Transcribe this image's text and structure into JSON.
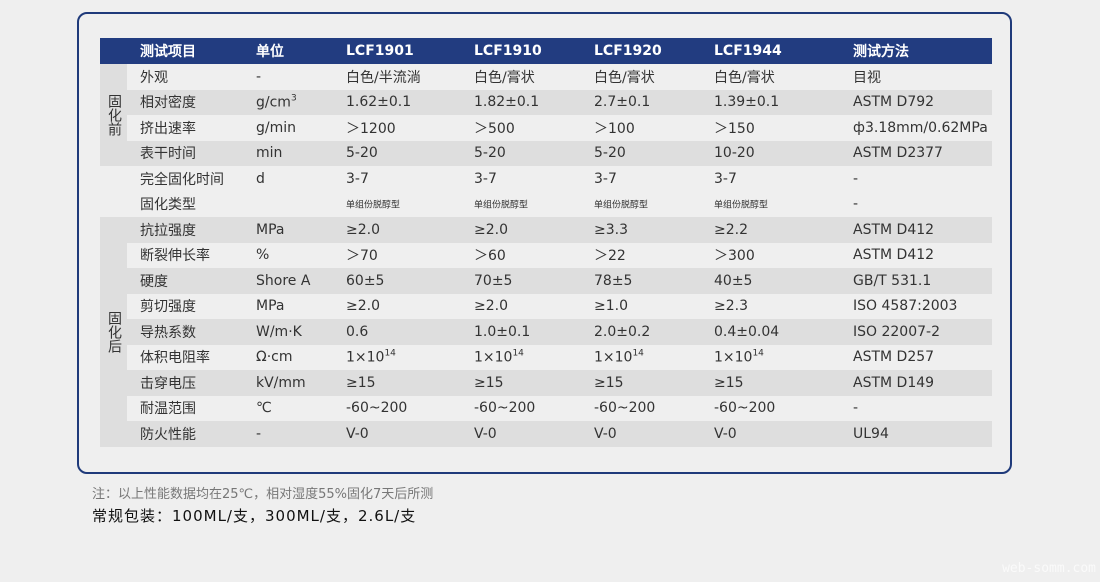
{
  "headers": [
    "测试项目",
    "单位",
    "LCF1901",
    "LCF1910",
    "LCF1920",
    "LCF1944",
    "测试方法"
  ],
  "groups": {
    "before": "固化前",
    "after": "固化后"
  },
  "rows": [
    {
      "item": "外观",
      "unit": "-",
      "v": [
        "白色/半流淌",
        "白色/膏状",
        "白色/膏状",
        "白色/膏状"
      ],
      "method": "目视"
    },
    {
      "item": "相对密度",
      "unit": "g/cm",
      "unit_sup": "3",
      "v": [
        "1.62±0.1",
        "1.82±0.1",
        "2.7±0.1",
        "1.39±0.1"
      ],
      "method": "ASTM D792"
    },
    {
      "item": "挤出速率",
      "unit": "g/min",
      "v": [
        "＞1200",
        "＞500",
        "＞100",
        "＞150"
      ],
      "method": "ф3.18mm/0.62MPa"
    },
    {
      "item": "表干时间",
      "unit": "min",
      "v": [
        "5-20",
        "5-20",
        "5-20",
        "10-20"
      ],
      "method": "ASTM D2377"
    },
    {
      "item": "完全固化时间",
      "unit": "d",
      "v": [
        "3-7",
        "3-7",
        "3-7",
        "3-7"
      ],
      "method": "-"
    },
    {
      "item": "固化类型",
      "unit": "",
      "v": [
        "单组份脱醇型",
        "单组份脱醇型",
        "单组份脱醇型",
        "单组份脱醇型"
      ],
      "method": "-"
    },
    {
      "item": "抗拉强度",
      "unit": "MPa",
      "v": [
        "≥2.0",
        "≥2.0",
        "≥3.3",
        "≥2.2"
      ],
      "method": "ASTM D412"
    },
    {
      "item": "断裂伸长率",
      "unit": "%",
      "v": [
        "＞70",
        "＞60",
        "＞22",
        "＞300"
      ],
      "method": "ASTM D412"
    },
    {
      "item": "硬度",
      "unit": "Shore A",
      "v": [
        "60±5",
        "70±5",
        "78±5",
        "40±5"
      ],
      "method": "GB/T 531.1"
    },
    {
      "item": "剪切强度",
      "unit": "MPa",
      "v": [
        "≥2.0",
        "≥2.0",
        "≥1.0",
        "≥2.3"
      ],
      "method": "ISO 4587:2003"
    },
    {
      "item": "导热系数",
      "unit": "W/m·K",
      "v": [
        "0.6",
        "1.0±0.1",
        "2.0±0.2",
        "0.4±0.04"
      ],
      "method": "ISO 22007-2"
    },
    {
      "item": "体积电阻率",
      "unit": "Ω·cm",
      "v": [
        "1×10",
        "1×10",
        "1×10",
        "1×10"
      ],
      "v_sup": "14",
      "method": "ASTM D257"
    },
    {
      "item": "击穿电压",
      "unit": "kV/mm",
      "v": [
        "≥15",
        "≥15",
        "≥15",
        "≥15"
      ],
      "method": "ASTM D149"
    },
    {
      "item": "耐温范围",
      "unit": "℃",
      "v": [
        "-60~200",
        "-60~200",
        "-60~200",
        "-60~200"
      ],
      "method": "-"
    },
    {
      "item": "防火性能",
      "unit": "-",
      "v": [
        "V-0",
        "V-0",
        "V-0",
        "V-0"
      ],
      "method": "UL94"
    }
  ],
  "note": "注：以上性能数据均在25℃，相对湿度55%固化7天后所测",
  "packaging": "常规包装：100ML/支，300ML/支，2.6L/支",
  "watermark": "web-somm.com",
  "colors": {
    "header": "#223c80",
    "border": "#1f3a7a",
    "stripe": "#dedede"
  }
}
